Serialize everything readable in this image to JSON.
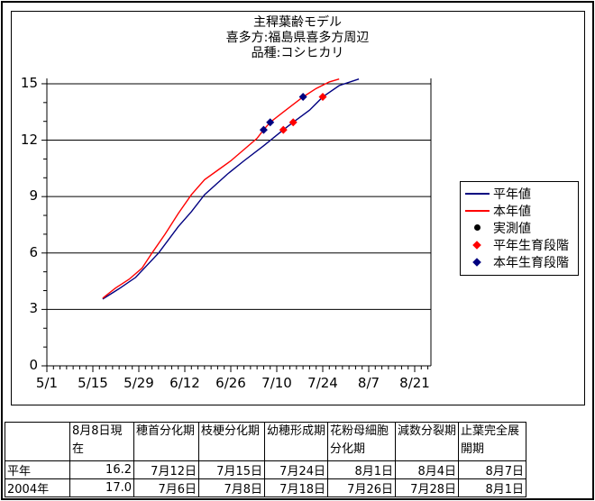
{
  "chart_data": {
    "type": "line",
    "title_lines": [
      "主稈葉齢モデル",
      "喜多方:福島県喜多方周辺",
      "品種:コシヒカリ"
    ],
    "x_axis": {
      "origin_date": "5/1",
      "tick_labels": [
        "5/1",
        "5/15",
        "5/29",
        "6/12",
        "6/26",
        "7/10",
        "7/24",
        "8/7",
        "8/21"
      ],
      "major_tick_days": [
        0,
        14,
        28,
        42,
        56,
        70,
        84,
        98,
        112
      ],
      "minor_unit_days": 2,
      "domain_days": [
        0,
        117
      ]
    },
    "y_axis": {
      "tick_values": [
        0,
        3,
        6,
        9,
        12,
        15
      ],
      "minor_unit": 1,
      "min": 0,
      "max": 15.25,
      "grid": true
    },
    "legend_position": "right",
    "series": [
      {
        "name": "平年値",
        "marker": "line",
        "color": "#000080",
        "points": [
          [
            17,
            3.55
          ],
          [
            22,
            4.1
          ],
          [
            27,
            4.7
          ],
          [
            34,
            6.0
          ],
          [
            40,
            7.4
          ],
          [
            44,
            8.2
          ],
          [
            48,
            9.1
          ],
          [
            55,
            10.2
          ],
          [
            60,
            10.9
          ],
          [
            66,
            11.7
          ],
          [
            72,
            12.55
          ],
          [
            75,
            12.95
          ],
          [
            80,
            13.6
          ],
          [
            84,
            14.3
          ],
          [
            89,
            14.9
          ],
          [
            95,
            15.25
          ]
        ]
      },
      {
        "name": "本年値",
        "marker": "line",
        "color": "#ff0000",
        "points": [
          [
            17,
            3.6
          ],
          [
            21,
            4.15
          ],
          [
            25,
            4.6
          ],
          [
            29,
            5.2
          ],
          [
            32,
            6.0
          ],
          [
            36,
            7.0
          ],
          [
            40,
            8.1
          ],
          [
            44,
            9.1
          ],
          [
            48,
            9.9
          ],
          [
            52,
            10.4
          ],
          [
            56,
            10.9
          ],
          [
            60,
            11.5
          ],
          [
            64,
            12.1
          ],
          [
            66,
            12.55
          ],
          [
            68,
            12.95
          ],
          [
            72,
            13.5
          ],
          [
            78,
            14.3
          ],
          [
            82,
            14.75
          ],
          [
            86,
            15.1
          ],
          [
            89,
            15.25
          ]
        ]
      },
      {
        "name": "実測値",
        "marker": "dot",
        "color": "#000000",
        "points": []
      },
      {
        "name": "平年生育段階",
        "marker": "diamond",
        "color": "#ff0000",
        "points": [
          [
            72,
            12.55
          ],
          [
            75,
            12.95
          ],
          [
            84,
            14.3
          ]
        ]
      },
      {
        "name": "本年生育段階",
        "marker": "diamond",
        "color": "#000080",
        "points": [
          [
            66,
            12.55
          ],
          [
            68,
            12.95
          ],
          [
            78,
            14.3
          ]
        ]
      }
    ]
  },
  "table": {
    "headers": [
      "",
      "8月8日現在",
      "穂首分化期",
      "枝梗分化期",
      "幼穂形成期",
      "花粉母細胞分化期",
      "減数分裂期",
      "止葉完全展開期"
    ],
    "rows": [
      {
        "label": "平年",
        "cells": [
          "16.2",
          "7月12日",
          "7月15日",
          "7月24日",
          "8月1日",
          "8月4日",
          "8月7日"
        ]
      },
      {
        "label": "2004年",
        "cells": [
          "17.0",
          "7月6日",
          "7月8日",
          "7月18日",
          "7月26日",
          "7月28日",
          "8月1日"
        ]
      }
    ]
  }
}
